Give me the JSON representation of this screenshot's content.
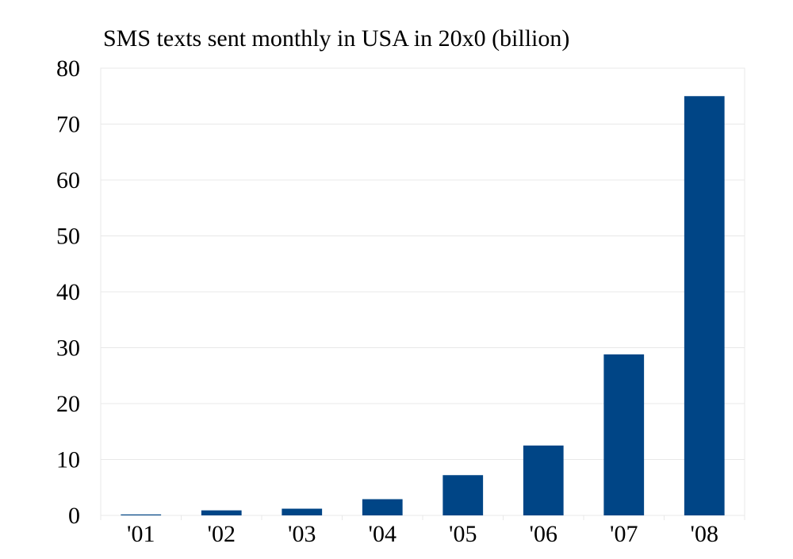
{
  "chart_data": {
    "type": "bar",
    "title": "SMS texts sent monthly in USA in 20x0 (billion)",
    "xlabel": "",
    "ylabel": "",
    "categories": [
      "'01",
      "'02",
      "'03",
      "'04",
      "'05",
      "'06",
      "'07",
      "'08"
    ],
    "values": [
      0.03,
      0.9,
      1.2,
      2.9,
      7.2,
      12.5,
      28.8,
      75.0
    ],
    "ylim": [
      0,
      80
    ],
    "yticks": [
      0,
      10,
      20,
      30,
      40,
      50,
      60,
      70,
      80
    ],
    "grid": true,
    "legend": "none",
    "bar_color": "#004586"
  }
}
